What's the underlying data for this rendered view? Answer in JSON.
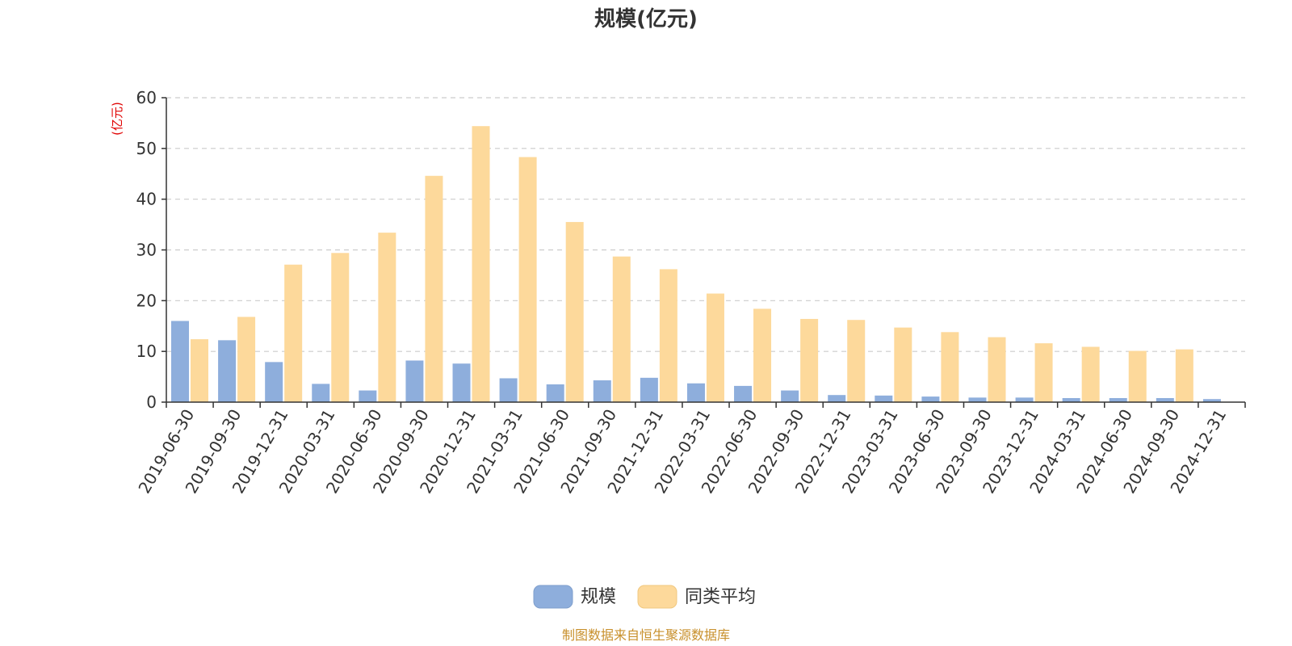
{
  "chart_data": {
    "type": "bar",
    "title": "规模(亿元)",
    "ylabel": "(亿元)",
    "ylim": [
      0,
      60
    ],
    "yticks": [
      0,
      10,
      20,
      30,
      40,
      50,
      60
    ],
    "grid": true,
    "legend_position": "bottom",
    "categories": [
      "2019-06-30",
      "2019-09-30",
      "2019-12-31",
      "2020-03-31",
      "2020-06-30",
      "2020-09-30",
      "2020-12-31",
      "2021-03-31",
      "2021-06-30",
      "2021-09-30",
      "2021-12-31",
      "2022-03-31",
      "2022-06-30",
      "2022-09-30",
      "2022-12-31",
      "2023-03-31",
      "2023-06-30",
      "2023-09-30",
      "2023-12-31",
      "2024-03-31",
      "2024-06-30",
      "2024-09-30",
      "2024-12-31"
    ],
    "series": [
      {
        "name": "规模",
        "color": "#8eaedc",
        "values": [
          16.0,
          12.2,
          7.9,
          3.6,
          2.3,
          8.2,
          7.6,
          4.7,
          3.5,
          4.3,
          4.8,
          3.7,
          3.2,
          2.3,
          1.4,
          1.3,
          1.1,
          0.9,
          0.9,
          0.8,
          0.8,
          0.8,
          0.6
        ]
      },
      {
        "name": "同类平均",
        "color": "#fdd99b",
        "values": [
          12.4,
          16.8,
          27.1,
          29.4,
          33.4,
          44.6,
          54.4,
          48.3,
          35.5,
          28.7,
          26.2,
          21.4,
          18.4,
          16.4,
          16.2,
          14.7,
          13.8,
          12.8,
          11.6,
          10.9,
          10.1,
          10.4,
          null
        ]
      }
    ]
  },
  "source_note": "制图数据来自恒生聚源数据库"
}
